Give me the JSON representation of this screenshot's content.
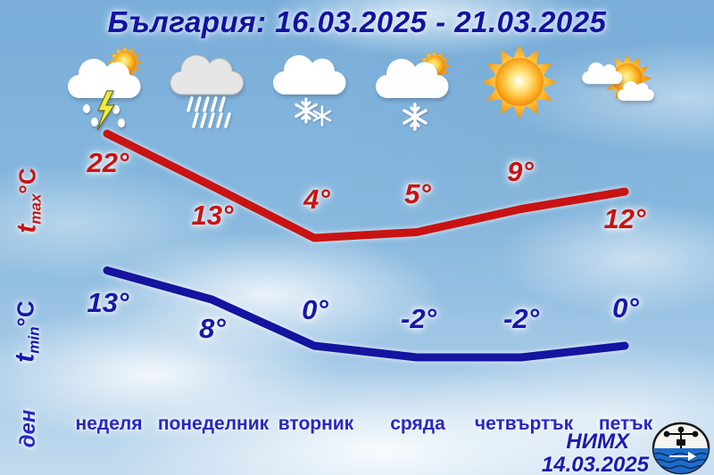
{
  "title": "България: 16.03.2025 - 21.03.2025",
  "axes": {
    "tmax": {
      "t": "t",
      "sub": "max",
      "unit": "°C"
    },
    "tmin": {
      "t": "t",
      "sub": "min",
      "unit": "°C"
    },
    "day": "ден"
  },
  "days": [
    {
      "name": "неделя",
      "icon": "thunderstorm-sun",
      "tmax": "22°",
      "tmin": "13°"
    },
    {
      "name": "понеделник",
      "icon": "rain",
      "tmax": "13°",
      "tmin": "8°"
    },
    {
      "name": "вторник",
      "icon": "snow",
      "tmax": "4°",
      "tmin": "0°"
    },
    {
      "name": "сряда",
      "icon": "snow-sun",
      "tmax": "5°",
      "tmin": "-2°"
    },
    {
      "name": "четвъртък",
      "icon": "sunny",
      "tmax": "9°",
      "tmin": "-2°"
    },
    {
      "name": "петък",
      "icon": "sun-clouds",
      "tmax": "12°",
      "tmin": "0°"
    }
  ],
  "footer": {
    "org": "НИМХ",
    "date": "14.03.2025"
  },
  "colors": {
    "tmax_line": "#c91313",
    "tmin_line": "#1414a0",
    "title_text": "#1212a2",
    "day_text": "#2727c4"
  },
  "chart_data": {
    "type": "line",
    "title": "България: 16.03.2025 - 21.03.2025",
    "categories": [
      "неделя",
      "понеделник",
      "вторник",
      "сряда",
      "четвъртък",
      "петък"
    ],
    "series": [
      {
        "key": "tmax",
        "name": "tmax °C",
        "color": "#c91313",
        "values": [
          22,
          13,
          4,
          5,
          9,
          12
        ]
      },
      {
        "key": "tmin",
        "name": "tmin °C",
        "color": "#1414a0",
        "values": [
          13,
          8,
          0,
          -2,
          -2,
          0
        ]
      }
    ],
    "xlabel": "ден",
    "ylabel": "t °C",
    "grid": false,
    "legend": "none",
    "condition_icons": [
      "thunderstorm-sun",
      "rain",
      "snow",
      "snow-sun",
      "sunny",
      "sun-clouds"
    ]
  }
}
